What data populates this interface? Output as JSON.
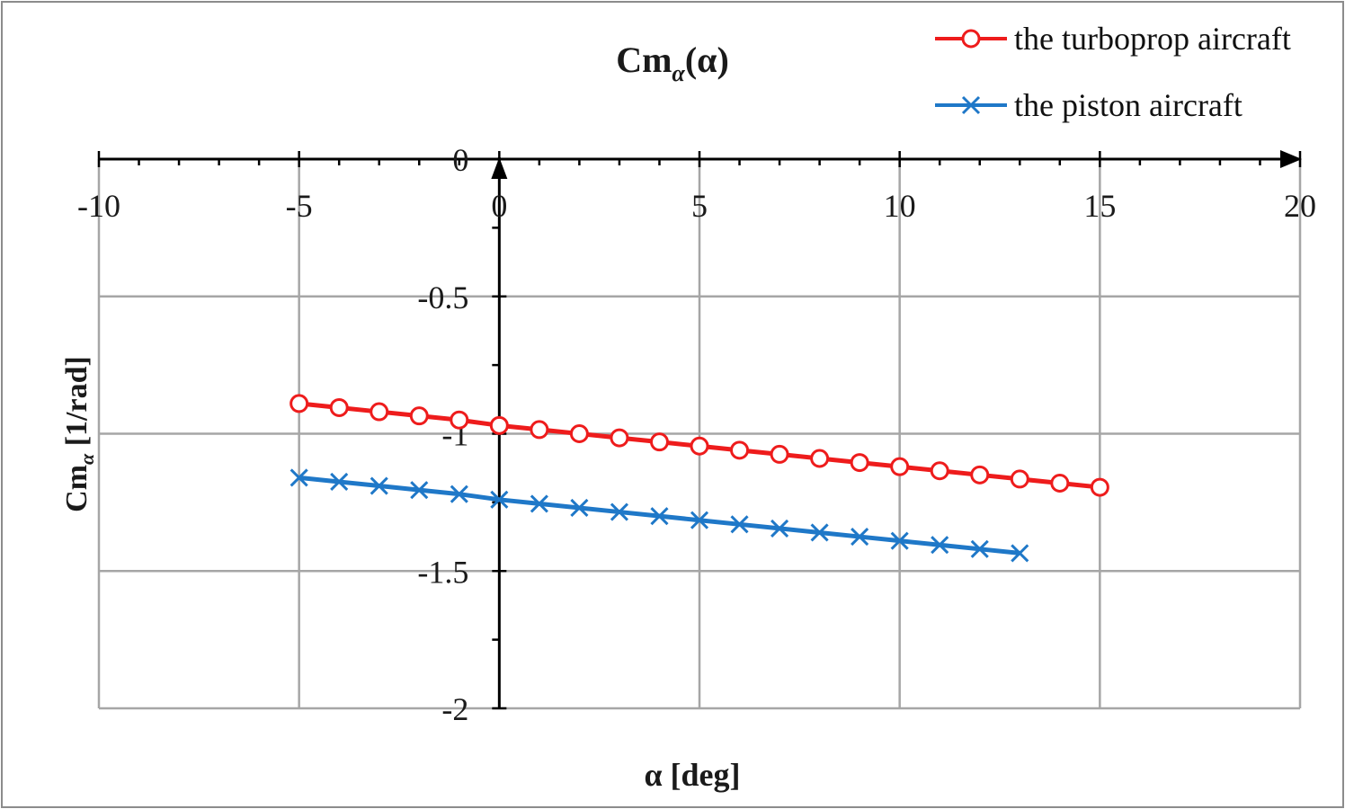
{
  "chart_data": {
    "type": "line",
    "title_main": "Cm",
    "title_sub": "α",
    "title_tail": "(α)",
    "xlabel": "α [deg]",
    "ylabel_main": "Cm",
    "ylabel_sub": "α",
    "ylabel_tail": " [1/rad]",
    "xlim": [
      -10,
      20
    ],
    "ylim": [
      -2,
      0
    ],
    "x_major_ticks": [
      -10,
      -5,
      0,
      5,
      10,
      15,
      20
    ],
    "x_tick_labels": [
      "-10",
      "-5",
      "0",
      "5",
      "10",
      "15",
      "20"
    ],
    "y_major_ticks": [
      0,
      -0.5,
      -1,
      -1.5,
      -2
    ],
    "y_tick_labels": [
      "0",
      "-0.5",
      "-1",
      "-1.5",
      "-2"
    ],
    "grid": true,
    "legend_position": "top-right",
    "series": [
      {
        "name": "the turboprop aircraft",
        "color": "#ee1c1c",
        "marker": "circle",
        "x": [
          -5,
          -4,
          -3,
          -2,
          -1,
          0,
          1,
          2,
          3,
          4,
          5,
          6,
          7,
          8,
          9,
          10,
          11,
          12,
          13,
          14,
          15
        ],
        "y": [
          -0.89,
          -0.905,
          -0.92,
          -0.935,
          -0.95,
          -0.97,
          -0.985,
          -1.0,
          -1.015,
          -1.03,
          -1.045,
          -1.06,
          -1.075,
          -1.09,
          -1.105,
          -1.12,
          -1.135,
          -1.15,
          -1.165,
          -1.18,
          -1.195
        ]
      },
      {
        "name": "the piston aircraft",
        "color": "#1f78c8",
        "marker": "x",
        "x": [
          -5,
          -4,
          -3,
          -2,
          -1,
          0,
          1,
          2,
          3,
          4,
          5,
          6,
          7,
          8,
          9,
          10,
          11,
          12,
          13
        ],
        "y": [
          -1.16,
          -1.175,
          -1.19,
          -1.205,
          -1.22,
          -1.24,
          -1.255,
          -1.27,
          -1.285,
          -1.3,
          -1.315,
          -1.33,
          -1.345,
          -1.36,
          -1.375,
          -1.39,
          -1.405,
          -1.42,
          -1.435
        ]
      }
    ]
  }
}
